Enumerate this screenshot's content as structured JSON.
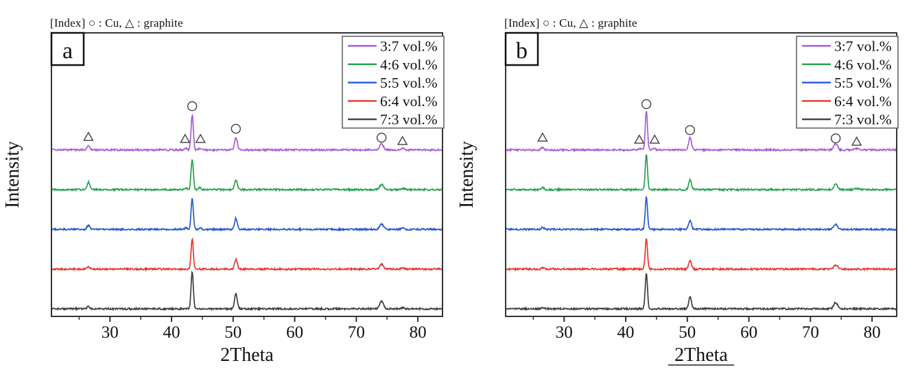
{
  "figure": {
    "background": "#ffffff",
    "frame_color": "#333333",
    "marker_outline_color": "#4a4a4a",
    "legend_border_color": "#666666"
  },
  "chart_data": [
    {
      "type": "line",
      "panel_label": "a",
      "index_label": "[Index] ○ : Cu, △ : graphite",
      "xlabel": "2Theta",
      "xlabel_underline": false,
      "ylabel": "Intensity",
      "xlim": [
        20.5,
        84
      ],
      "xticks": [
        30,
        40,
        50,
        60,
        70,
        80
      ],
      "xticks_minor": [
        25,
        35,
        45,
        55,
        65,
        75
      ],
      "grid": false,
      "legend_position": "top-right",
      "series": [
        {
          "name": "3:7 vol.%",
          "color": "#a55ad8",
          "peaks": [
            [
              26.5,
              7,
              0.22
            ],
            [
              42.3,
              2.5,
              0.2
            ],
            [
              43.35,
              52,
              0.18
            ],
            [
              44.6,
              2.5,
              0.2
            ],
            [
              50.45,
              18,
              0.22
            ],
            [
              74.1,
              9,
              0.3
            ],
            [
              77.5,
              2,
              0.3
            ]
          ]
        },
        {
          "name": "4:6 vol.%",
          "color": "#24a04e",
          "peaks": [
            [
              26.5,
              11,
              0.22
            ],
            [
              42.3,
              2,
              0.2
            ],
            [
              43.35,
              45,
              0.18
            ],
            [
              44.6,
              3,
              0.2
            ],
            [
              50.45,
              14,
              0.22
            ],
            [
              74.1,
              8,
              0.3
            ],
            [
              77.5,
              2,
              0.3
            ]
          ]
        },
        {
          "name": "5:5 vol.%",
          "color": "#2458d6",
          "peaks": [
            [
              26.5,
              6,
              0.22
            ],
            [
              42.3,
              2,
              0.2
            ],
            [
              43.35,
              46,
              0.18
            ],
            [
              44.6,
              2,
              0.2
            ],
            [
              50.45,
              16,
              0.22
            ],
            [
              74.1,
              8,
              0.3
            ],
            [
              77.5,
              1.5,
              0.3
            ]
          ]
        },
        {
          "name": "6:4 vol.%",
          "color": "#e8332a",
          "peaks": [
            [
              26.5,
              4,
              0.22
            ],
            [
              43.35,
              44,
              0.18
            ],
            [
              50.45,
              14,
              0.22
            ],
            [
              74.1,
              7,
              0.3
            ],
            [
              77.5,
              1.5,
              0.3
            ]
          ]
        },
        {
          "name": "7:3 vol.%",
          "color": "#3d3d3d",
          "peaks": [
            [
              26.5,
              3,
              0.22
            ],
            [
              43.35,
              55,
              0.18
            ],
            [
              50.45,
              22,
              0.22
            ],
            [
              74.1,
              11,
              0.3
            ],
            [
              77.5,
              1.5,
              0.3
            ]
          ]
        }
      ],
      "peak_annotations": [
        {
          "symbol": "triangle",
          "phase": "graphite",
          "x": 26.5,
          "dy": 20
        },
        {
          "symbol": "triangle",
          "phase": "graphite",
          "x": 42.2,
          "dy": 17
        },
        {
          "symbol": "circle",
          "phase": "Cu",
          "x": 43.35,
          "dy": 65
        },
        {
          "symbol": "triangle",
          "phase": "graphite",
          "x": 44.7,
          "dy": 17
        },
        {
          "symbol": "circle",
          "phase": "Cu",
          "x": 50.45,
          "dy": 32
        },
        {
          "symbol": "circle",
          "phase": "Cu",
          "x": 74.1,
          "dy": 19
        },
        {
          "symbol": "triangle",
          "phase": "graphite",
          "x": 77.5,
          "dy": 14
        }
      ]
    },
    {
      "type": "line",
      "panel_label": "b",
      "index_label": "[Index] ○ : Cu, △ : graphite",
      "xlabel": "2Theta",
      "xlabel_underline": true,
      "ylabel": "Intensity",
      "xlim": [
        20.5,
        84
      ],
      "xticks": [
        30,
        40,
        50,
        60,
        70,
        80
      ],
      "xticks_minor": [
        25,
        35,
        45,
        55,
        65,
        75
      ],
      "grid": false,
      "legend_position": "top-right",
      "series": [
        {
          "name": "3:7 vol.%",
          "color": "#a55ad8",
          "peaks": [
            [
              26.5,
              4,
              0.22
            ],
            [
              42.3,
              2,
              0.2
            ],
            [
              43.35,
              58,
              0.18
            ],
            [
              44.6,
              2,
              0.2
            ],
            [
              50.45,
              18,
              0.22
            ],
            [
              74.1,
              9,
              0.3
            ],
            [
              77.5,
              2,
              0.3
            ]
          ]
        },
        {
          "name": "4:6 vol.%",
          "color": "#24a04e",
          "peaks": [
            [
              26.5,
              3,
              0.22
            ],
            [
              43.35,
              52,
              0.18
            ],
            [
              50.45,
              15,
              0.22
            ],
            [
              74.1,
              8,
              0.3
            ],
            [
              77.5,
              1.5,
              0.3
            ]
          ]
        },
        {
          "name": "5:5 vol.%",
          "color": "#2458d6",
          "peaks": [
            [
              26.5,
              3,
              0.22
            ],
            [
              43.35,
              48,
              0.18
            ],
            [
              50.45,
              14,
              0.22
            ],
            [
              74.1,
              7,
              0.3
            ]
          ]
        },
        {
          "name": "6:4 vol.%",
          "color": "#e8332a",
          "peaks": [
            [
              26.5,
              2,
              0.22
            ],
            [
              43.35,
              46,
              0.18
            ],
            [
              50.45,
              12,
              0.22
            ],
            [
              74.1,
              6,
              0.3
            ]
          ]
        },
        {
          "name": "7:3 vol.%",
          "color": "#3d3d3d",
          "peaks": [
            [
              26.5,
              2,
              0.22
            ],
            [
              43.35,
              52,
              0.18
            ],
            [
              50.45,
              18,
              0.22
            ],
            [
              74.1,
              9,
              0.3
            ]
          ]
        }
      ],
      "peak_annotations": [
        {
          "symbol": "triangle",
          "phase": "graphite",
          "x": 26.5,
          "dy": 19
        },
        {
          "symbol": "triangle",
          "phase": "graphite",
          "x": 42.2,
          "dy": 16
        },
        {
          "symbol": "circle",
          "phase": "Cu",
          "x": 43.35,
          "dy": 68
        },
        {
          "symbol": "triangle",
          "phase": "graphite",
          "x": 44.7,
          "dy": 16
        },
        {
          "symbol": "circle",
          "phase": "Cu",
          "x": 50.45,
          "dy": 30
        },
        {
          "symbol": "circle",
          "phase": "Cu",
          "x": 74.1,
          "dy": 18
        },
        {
          "symbol": "triangle",
          "phase": "graphite",
          "x": 77.5,
          "dy": 13
        }
      ]
    }
  ]
}
